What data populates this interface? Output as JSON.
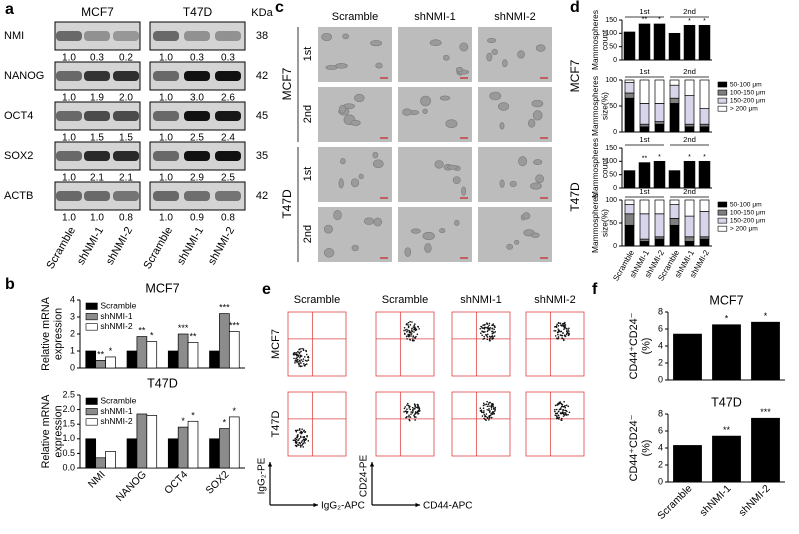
{
  "panel_a": {
    "label": "a",
    "cell_lines": [
      "MCF7",
      "T47D"
    ],
    "unit": "KDa",
    "lanes": [
      "Scramble",
      "shNMI-1",
      "shNMI-2",
      "Scramble",
      "shNMI-1",
      "shNMI-2"
    ],
    "rows": [
      {
        "name": "NMI",
        "kda": 38,
        "levels": [
          "1.0",
          "0.3",
          "0.2",
          "1.0",
          "0.3",
          "0.3"
        ]
      },
      {
        "name": "NANOG",
        "kda": 42,
        "levels": [
          "1.0",
          "1.9",
          "2.0",
          "1.0",
          "3.0",
          "2.6"
        ]
      },
      {
        "name": "OCT4",
        "kda": 45,
        "levels": [
          "1.0",
          "1.5",
          "1.5",
          "1.0",
          "2.5",
          "2.4"
        ]
      },
      {
        "name": "SOX2",
        "kda": 35,
        "levels": [
          "1.0",
          "2.1",
          "2.1",
          "1.0",
          "2.9",
          "2.5"
        ]
      },
      {
        "name": "ACTB",
        "kda": 42,
        "levels": [
          "1.0",
          "1.0",
          "0.8",
          "1.0",
          "0.9",
          "0.8"
        ]
      }
    ]
  },
  "panel_b": {
    "label": "b",
    "charts": [
      {
        "type": "bar",
        "title": "MCF7",
        "y_label": [
          "Relative mRNA",
          "expression"
        ],
        "ylim": [
          0,
          4
        ],
        "yticks": [
          0,
          1,
          2,
          3,
          4
        ],
        "legend": "top-left",
        "series": [
          {
            "name": "Scramble",
            "color": "#000000",
            "values": [
              1,
              1,
              1,
              1
            ],
            "annotations": [
              null,
              null,
              null,
              null
            ]
          },
          {
            "name": "shNMI-1",
            "color": "#8c8c8c",
            "values": [
              0.45,
              1.85,
              2.0,
              3.2
            ],
            "annotations": [
              "**",
              "**",
              "***",
              "***"
            ]
          },
          {
            "name": "shNMI-2",
            "color": "#ffffff",
            "values": [
              0.65,
              1.55,
              1.5,
              2.15
            ],
            "annotations": [
              "*",
              "*",
              "**",
              "***"
            ]
          }
        ]
      },
      {
        "type": "bar",
        "title": "T47D",
        "y_label": [
          "Relative mRNA",
          "expression"
        ],
        "categories": [
          "NMI",
          "NANOG",
          "OCT4",
          "SOX2"
        ],
        "ylim": [
          0,
          2.5
        ],
        "yticks": [
          {
            "value": 0,
            "label": "0.0"
          },
          0.5,
          {
            "value": 1,
            "label": "1.0"
          },
          1.5,
          {
            "value": 2,
            "label": "2.0"
          },
          2.5
        ],
        "legend": "top-left",
        "series": [
          {
            "name": "Scramble",
            "color": "#000000",
            "values": [
              1,
              1,
              1,
              1
            ],
            "annotations": [
              null,
              null,
              null,
              null
            ]
          },
          {
            "name": "shNMI-1",
            "color": "#8c8c8c",
            "values": [
              0.35,
              1.85,
              1.4,
              1.35
            ],
            "annotations": [
              null,
              null,
              "*",
              "*"
            ]
          },
          {
            "name": "shNMI-2",
            "color": "#ffffff",
            "values": [
              0.57,
              1.8,
              1.6,
              1.75
            ],
            "annotations": [
              null,
              null,
              "*",
              "*"
            ]
          }
        ]
      }
    ]
  },
  "panel_c": {
    "label": "c",
    "columns": [
      "Scramble",
      "shNMI-1",
      "shNMI-2"
    ],
    "groups": [
      {
        "name": "MCF7",
        "rows": [
          "1st",
          "2nd"
        ]
      },
      {
        "name": "T47D",
        "rows": [
          "1st",
          "2nd"
        ]
      }
    ]
  },
  "panel_d": {
    "label": "d",
    "cell_lines": [
      "MCF7",
      "T47D"
    ],
    "charts": [
      {
        "type": "bar",
        "groups": [
          "1st",
          "2nd"
        ],
        "y_label": [
          "Mammospheres",
          "count"
        ],
        "ylim": [
          0,
          150
        ],
        "yticks": [
          0,
          50,
          100,
          150
        ],
        "series": [
          {
            "color": "#000000",
            "values": [
              105,
              135,
              135,
              100,
              130,
              130
            ],
            "annotations": [
              null,
              "**",
              "*",
              null,
              "*",
              "*"
            ]
          }
        ]
      },
      {
        "type": "bar",
        "stacked": true,
        "groups": [
          "1st",
          "2nd"
        ],
        "y_label": [
          "Mammospheres",
          "size(%)"
        ],
        "ylim": [
          0,
          100
        ],
        "yticks": [
          0,
          50,
          100
        ],
        "legend": "right",
        "series": [
          {
            "name": "50-100 μm",
            "color": "#000000",
            "values": [
              65,
              10,
              15,
              55,
              10,
              10
            ]
          },
          {
            "name": "100-150 μm",
            "color": "#808080",
            "values": [
              10,
              5,
              5,
              10,
              5,
              5
            ]
          },
          {
            "name": "150-200 μm",
            "color": "#d8d4ea",
            "values": [
              20,
              40,
              35,
              25,
              55,
              30
            ]
          },
          {
            "name": "> 200 μm",
            "color": "#ffffff",
            "values": [
              5,
              45,
              45,
              10,
              30,
              55
            ]
          }
        ]
      },
      {
        "type": "bar",
        "groups": [
          "1st",
          "2nd"
        ],
        "y_label": [
          "Mammospheres",
          "count"
        ],
        "ylim": [
          0,
          150
        ],
        "yticks": [
          0,
          50,
          100,
          150
        ],
        "series": [
          {
            "color": "#000000",
            "values": [
              65,
              95,
              100,
              65,
              100,
              100
            ],
            "annotations": [
              null,
              "**",
              "*",
              null,
              "*",
              "*"
            ]
          }
        ]
      },
      {
        "type": "bar",
        "stacked": true,
        "groups": [
          "1st",
          "2nd"
        ],
        "y_label": [
          "Mammospheres",
          "size(%)"
        ],
        "categories": [
          "Scramble",
          "shNMI-1",
          "shNMI-2",
          "Scramble",
          "shNMI-1",
          "shNMI-2"
        ],
        "ylim": [
          0,
          100
        ],
        "yticks": [
          0,
          50,
          100
        ],
        "legend": "right",
        "series": [
          {
            "name": "50-100 μm",
            "color": "#000000",
            "values": [
              45,
              10,
              15,
              45,
              10,
              15
            ]
          },
          {
            "name": "100-150 μm",
            "color": "#808080",
            "values": [
              25,
              5,
              5,
              15,
              10,
              5
            ]
          },
          {
            "name": "150-200 μm",
            "color": "#d8d4ea",
            "values": [
              20,
              55,
              50,
              30,
              45,
              55
            ]
          },
          {
            "name": "> 200 μm",
            "color": "#ffffff",
            "values": [
              10,
              30,
              30,
              10,
              35,
              25
            ]
          }
        ]
      }
    ]
  },
  "panel_e": {
    "label": "e",
    "isotype_header": "Scramble",
    "headers": [
      "Scramble",
      "shNMI-1",
      "shNMI-2"
    ],
    "rows": [
      "MCF7",
      "T47D"
    ],
    "isotype_axes": {
      "y": "IgG₂-PE",
      "x": "IgG₂-APC"
    },
    "axes": {
      "y": "CD24-PE",
      "x": "CD44-APC"
    }
  },
  "panel_f": {
    "label": "f",
    "charts": [
      {
        "type": "bar",
        "title": "MCF7",
        "y_label": [
          "CD44⁺CD24⁻",
          "(%)"
        ],
        "ylim": [
          0,
          8
        ],
        "yticks": [
          0,
          2,
          4,
          6,
          8
        ],
        "series": [
          {
            "color": "#000000",
            "values": [
              5.4,
              6.5,
              6.8
            ],
            "annotations": [
              null,
              "*",
              "*"
            ]
          }
        ]
      },
      {
        "type": "bar",
        "title": "T47D",
        "y_label": [
          "CD44⁺CD24⁻",
          "(%)"
        ],
        "categories": [
          "Scramble",
          "shNMI-1",
          "shNMI-2"
        ],
        "ylim": [
          0,
          8
        ],
        "yticks": [
          0,
          2,
          4,
          6,
          8
        ],
        "series": [
          {
            "color": "#000000",
            "values": [
              4.3,
              5.4,
              7.5
            ],
            "annotations": [
              null,
              "**",
              "***"
            ]
          }
        ]
      }
    ]
  }
}
